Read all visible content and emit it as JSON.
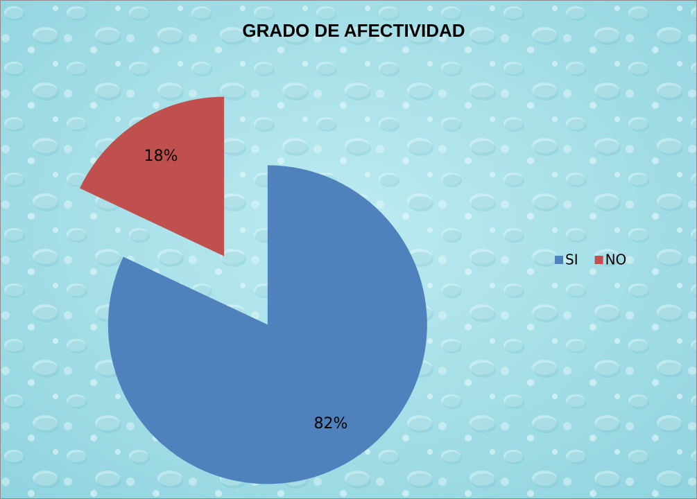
{
  "chart_data": {
    "type": "pie",
    "title": "GRADO DE AFECTIVIDAD",
    "categories": [
      "SI",
      "NO"
    ],
    "values": [
      82,
      18
    ],
    "value_labels": [
      "82%",
      "18%"
    ],
    "colors": [
      "#4f81bd",
      "#c0504d"
    ],
    "legend": "right"
  }
}
